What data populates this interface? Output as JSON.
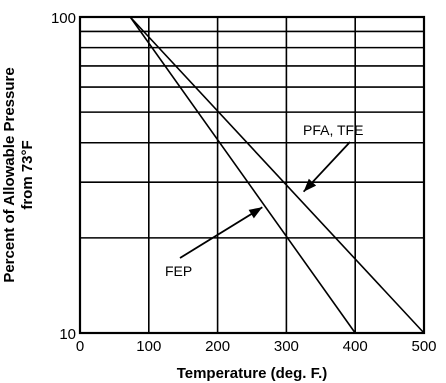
{
  "chart_data": {
    "type": "line",
    "xlabel": "Temperature (deg. F.)",
    "ylabel": [
      "Percent of Allowable Pressure",
      "from 73°F"
    ],
    "xlim": [
      0,
      500
    ],
    "ylim": [
      10,
      100
    ],
    "yscale": "log",
    "grid": true,
    "x_ticks": [
      0,
      100,
      200,
      300,
      400,
      500
    ],
    "x_tick_labels": [
      "0",
      "100",
      "200",
      "300",
      "400",
      "500"
    ],
    "y_tick_labels": [
      "10",
      "100"
    ],
    "y_grid_values": [
      10,
      20,
      30,
      40,
      50,
      60,
      70,
      80,
      90,
      100
    ],
    "series": [
      {
        "name": "PFA, TFE",
        "x": [
          73,
          500
        ],
        "y": [
          100,
          10
        ]
      },
      {
        "name": "FEP",
        "x": [
          73,
          400
        ],
        "y": [
          100,
          10
        ]
      }
    ],
    "annotations": [
      {
        "text": "PFA, TFE",
        "arrow_to": {
          "x": 325,
          "y": 28
        }
      },
      {
        "text": "FEP",
        "arrow_to": {
          "x": 265,
          "y": 25
        }
      }
    ]
  }
}
